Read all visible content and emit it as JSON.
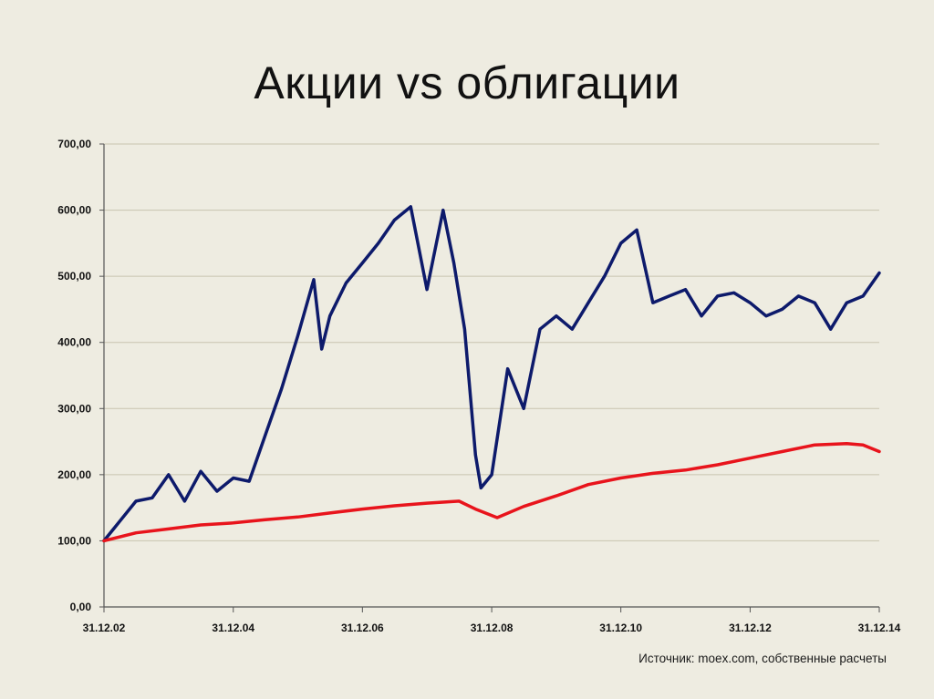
{
  "slide": {
    "title": "Акции vs облигации",
    "source": "Источник: moex.com, собственные расчеты"
  },
  "colors": {
    "background": "#eeece1",
    "stocks": "#0d1a6b",
    "bonds": "#e8141c",
    "grid": "#c8c4b0",
    "axis": "#555555"
  },
  "chart_data": {
    "type": "line",
    "title": "Акции vs облигации",
    "xlabel": "",
    "ylabel": "",
    "ylim": [
      0,
      700
    ],
    "yticks": [
      0,
      100,
      200,
      300,
      400,
      500,
      600,
      700
    ],
    "ytick_labels": [
      "0,00",
      "100,00",
      "200,00",
      "300,00",
      "400,00",
      "500,00",
      "600,00",
      "700,00"
    ],
    "xlim": [
      "2002-12-31",
      "2014-12-31"
    ],
    "xticks": [
      "2002-12-31",
      "2004-12-31",
      "2006-12-31",
      "2008-12-31",
      "2010-12-31",
      "2012-12-31",
      "2014-12-31"
    ],
    "xtick_labels": [
      "31.12.02",
      "31.12.04",
      "31.12.06",
      "31.12.08",
      "31.12.10",
      "31.12.12",
      "31.12.14"
    ],
    "grid": "horizontal",
    "legend": "none",
    "series": [
      {
        "color": "#0d1a6b",
        "x": [
          "2002-12-31",
          "2003-03-31",
          "2003-06-30",
          "2003-09-30",
          "2003-12-31",
          "2004-03-31",
          "2004-06-30",
          "2004-09-30",
          "2004-12-31",
          "2005-03-31",
          "2005-06-30",
          "2005-09-30",
          "2005-12-31",
          "2006-03-31",
          "2006-05-15",
          "2006-06-30",
          "2006-09-30",
          "2006-12-31",
          "2007-03-31",
          "2007-06-30",
          "2007-09-30",
          "2007-12-31",
          "2008-03-31",
          "2008-05-31",
          "2008-07-31",
          "2008-09-30",
          "2008-10-31",
          "2008-12-31",
          "2009-03-31",
          "2009-06-30",
          "2009-09-30",
          "2009-12-31",
          "2010-03-31",
          "2010-06-30",
          "2010-09-30",
          "2010-12-31",
          "2011-03-31",
          "2011-06-30",
          "2011-09-30",
          "2011-12-31",
          "2012-03-31",
          "2012-06-30",
          "2012-09-30",
          "2012-12-31",
          "2013-03-31",
          "2013-06-30",
          "2013-09-30",
          "2013-12-31",
          "2014-03-31",
          "2014-06-30",
          "2014-09-30",
          "2014-12-31"
        ],
        "y": [
          100,
          130,
          160,
          165,
          200,
          160,
          205,
          175,
          195,
          190,
          260,
          330,
          410,
          495,
          390,
          440,
          490,
          520,
          550,
          585,
          605,
          480,
          600,
          520,
          420,
          230,
          180,
          200,
          360,
          300,
          420,
          440,
          420,
          460,
          500,
          550,
          570,
          460,
          470,
          480,
          440,
          470,
          475,
          460,
          440,
          450,
          470,
          460,
          420,
          460,
          470,
          505
        ]
      },
      {
        "color": "#e8141c",
        "x": [
          "2002-12-31",
          "2003-06-30",
          "2003-12-31",
          "2004-06-30",
          "2004-12-31",
          "2005-06-30",
          "2005-12-31",
          "2006-06-30",
          "2006-12-31",
          "2007-06-30",
          "2007-12-31",
          "2008-06-30",
          "2008-09-30",
          "2009-01-31",
          "2009-06-30",
          "2009-12-31",
          "2010-06-30",
          "2010-12-31",
          "2011-06-30",
          "2011-12-31",
          "2012-06-30",
          "2012-12-31",
          "2013-06-30",
          "2013-12-31",
          "2014-06-30",
          "2014-09-30",
          "2014-12-31"
        ],
        "y": [
          100,
          112,
          118,
          124,
          127,
          132,
          136,
          142,
          148,
          153,
          157,
          160,
          148,
          135,
          152,
          168,
          185,
          195,
          202,
          207,
          215,
          225,
          235,
          245,
          247,
          245,
          235
        ]
      }
    ]
  }
}
